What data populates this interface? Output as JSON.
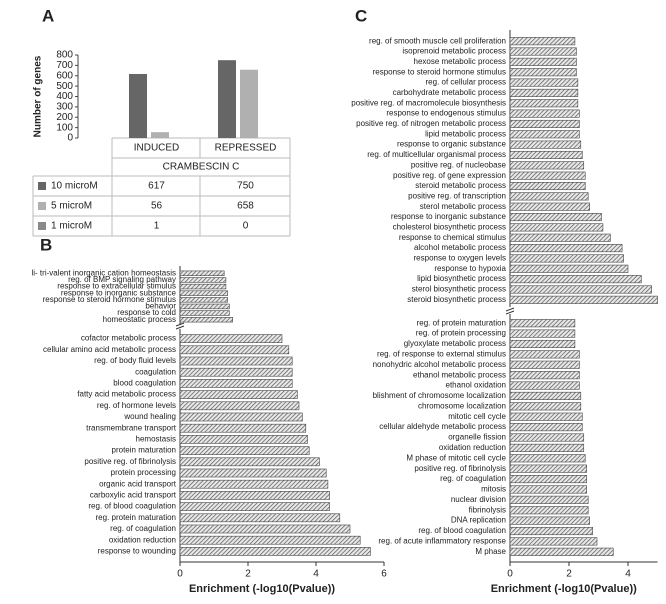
{
  "chart_data": [
    {
      "type": "bar",
      "panel": "A",
      "ylabel": "Number of genes",
      "xlabel": "CRAMBESCIN C",
      "categories": [
        "INDUCED",
        "REPRESSED"
      ],
      "series": [
        {
          "name": "10 microM",
          "color": "#666666",
          "values": [
            617,
            750
          ]
        },
        {
          "name": "5 microM",
          "color": "#b0b0b0",
          "values": [
            56,
            658
          ]
        },
        {
          "name": "1 microM",
          "color": "#8a8a8a",
          "values": [
            1,
            0
          ]
        }
      ],
      "ylim": [
        0,
        800
      ],
      "yticks": [
        0,
        100,
        200,
        300,
        400,
        500,
        600,
        700,
        800
      ]
    },
    {
      "type": "hbar",
      "panel": "B",
      "xlabel": "Enrichment (-log10(Pvalue))",
      "color": "#555555",
      "xlim": [
        0,
        6
      ],
      "xticks": [
        0,
        2,
        4,
        6
      ],
      "groups": [
        {
          "categories": [
            "li- tri-valent inorganic cation homeostasis",
            "reg. of BMP signaling pathway",
            "response to extracellular stimulus",
            "response to inorganic substance",
            "response to steroid hormone stimulus",
            "behavior",
            "response to cold",
            "homeostatic process"
          ],
          "values": [
            1.3,
            1.35,
            1.35,
            1.4,
            1.4,
            1.45,
            1.45,
            1.55
          ]
        },
        {
          "categories": [
            "cofactor metabolic process",
            "cellular amino acid metabolic process",
            "reg. of body fluid levels",
            "coagulation",
            "blood coagulation",
            "fatty acid metabolic process",
            "reg. of hormone levels",
            "wound healing",
            "transmembrane transport",
            "hemostasis",
            "protein maturation",
            "positive reg. of fibrinolysis",
            "protein processing",
            "organic acid transport",
            "carboxylic acid transport",
            "reg. of blood coagulation",
            "reg. protein maturation",
            "reg. of coagulation",
            "oxidation reduction",
            "response to wounding"
          ],
          "values": [
            3.0,
            3.2,
            3.3,
            3.3,
            3.3,
            3.45,
            3.5,
            3.6,
            3.7,
            3.75,
            3.8,
            4.1,
            4.3,
            4.35,
            4.4,
            4.4,
            4.7,
            5.0,
            5.3,
            5.6
          ]
        }
      ]
    },
    {
      "type": "hbar",
      "panel": "C",
      "xlabel": "Enrichment (-log10(Pvalue))",
      "color": "#555555",
      "xlim": [
        0,
        5
      ],
      "xticks": [
        0,
        2,
        4
      ],
      "groups": [
        {
          "categories": [
            "reg. of smooth muscle cell proliferation",
            "isoprenoid metabolic process",
            "hexose metabolic process",
            "response to steroid hormone stimulus",
            "reg. of cellular process",
            "carbohydrate metabolic process",
            "positive reg. of macromolecule biosynthesis",
            "response to endogenous stimulus",
            "positive reg. of nitrogen metabolic process",
            "lipid metabolic process",
            "response to organic substance",
            "reg. of multicellular organismal process",
            "positive reg. of nucleobase",
            "positive reg. of gene expression",
            "steroid metabolic process",
            "positive reg. of transcription",
            "sterol metabolic process",
            "response to inorganic substance",
            "cholesterol biosynthetic process",
            "response to chemical stimulus",
            "alcohol metabolic process",
            "response to oxygen levels",
            "response to hypoxia",
            "lipid biosynthetic process",
            "sterol biosynthetic process",
            "steroid biosynthetic process"
          ],
          "values": [
            2.2,
            2.25,
            2.25,
            2.25,
            2.3,
            2.3,
            2.3,
            2.35,
            2.35,
            2.35,
            2.4,
            2.45,
            2.5,
            2.55,
            2.55,
            2.65,
            2.7,
            3.1,
            3.15,
            3.4,
            3.8,
            3.85,
            4.0,
            4.45,
            4.8,
            5.0
          ]
        },
        {
          "categories": [
            "reg. of protein maturation",
            "reg. of protein processing",
            "glyoxylate metabolic process",
            "reg. of response to external stimulus",
            "nonohydric alcohol metabolic process",
            "ethanol metabolic process",
            "ethanol oxidation",
            "blishment of chromosome localization",
            "chromosome localization",
            "mitotic cell cycle",
            "cellular aldehyde metabolic process",
            "organelle fission",
            "oxidation reduction",
            "M phase of mitotic cell cycle",
            "positive reg. of fibrinolysis",
            "reg. of coagulation",
            "mitosis",
            "nuclear division",
            "fibrinolysis",
            "DNA replication",
            "reg. of blood coagulation",
            "reg. of acute inflammatory response",
            "M phase"
          ],
          "values": [
            2.2,
            2.2,
            2.2,
            2.35,
            2.35,
            2.35,
            2.35,
            2.4,
            2.4,
            2.45,
            2.45,
            2.5,
            2.5,
            2.55,
            2.6,
            2.6,
            2.6,
            2.65,
            2.65,
            2.7,
            2.8,
            2.95,
            3.5
          ]
        }
      ]
    }
  ]
}
